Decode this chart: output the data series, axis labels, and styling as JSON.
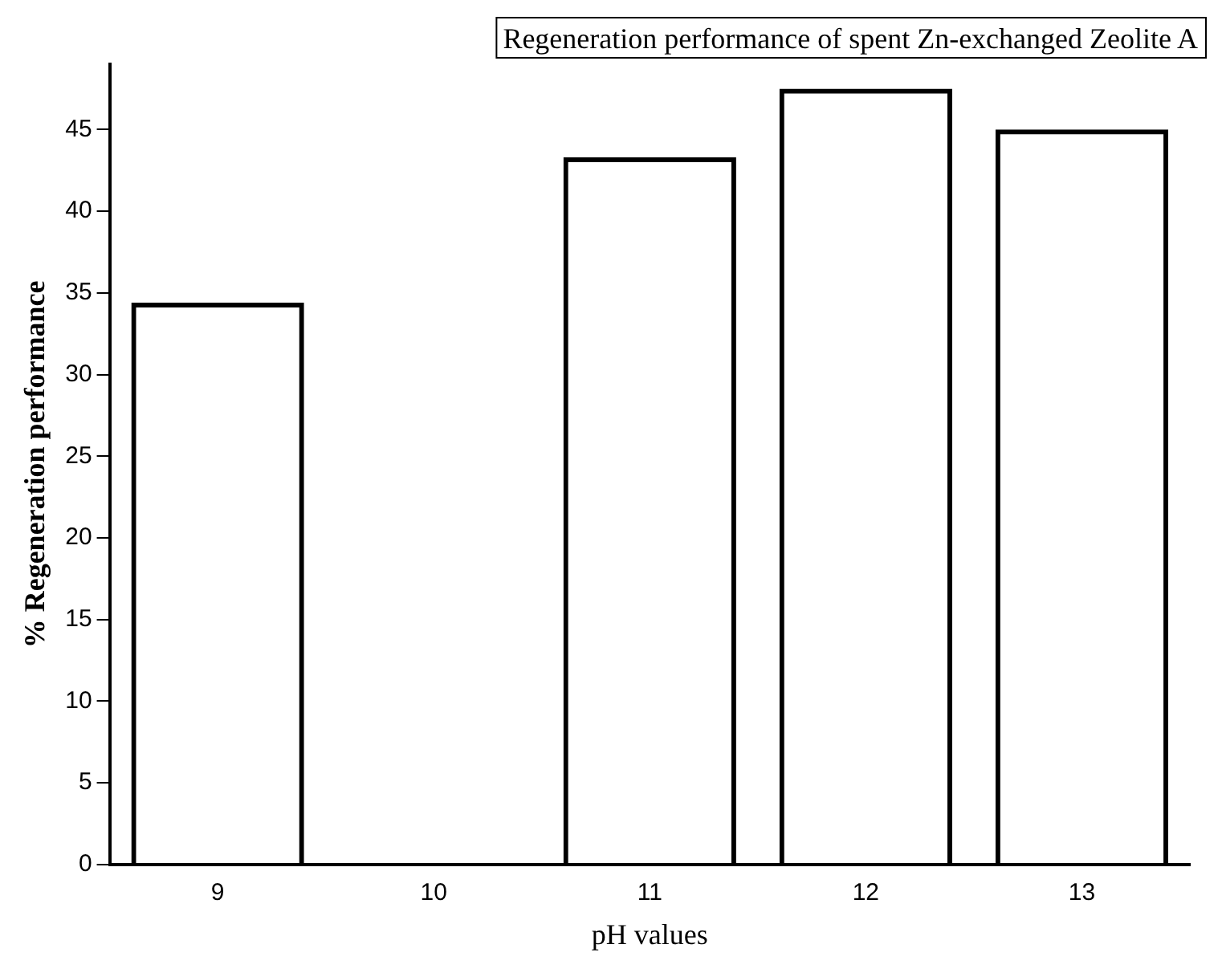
{
  "chart_data": {
    "type": "bar",
    "title": "Regeneration performance of spent Zn-exchanged Zeolite A",
    "xlabel": "pH values",
    "ylabel": "% Regeneration performance",
    "categories": [
      "9",
      "10",
      "11",
      "12",
      "13"
    ],
    "values": [
      34.4,
      0,
      43.3,
      47.5,
      45.0
    ],
    "color": "#000000",
    "ylim": [
      0,
      49
    ],
    "yticks": [
      0,
      5,
      10,
      15,
      20,
      25,
      30,
      35,
      40,
      45
    ],
    "grid": false,
    "legend": false
  }
}
